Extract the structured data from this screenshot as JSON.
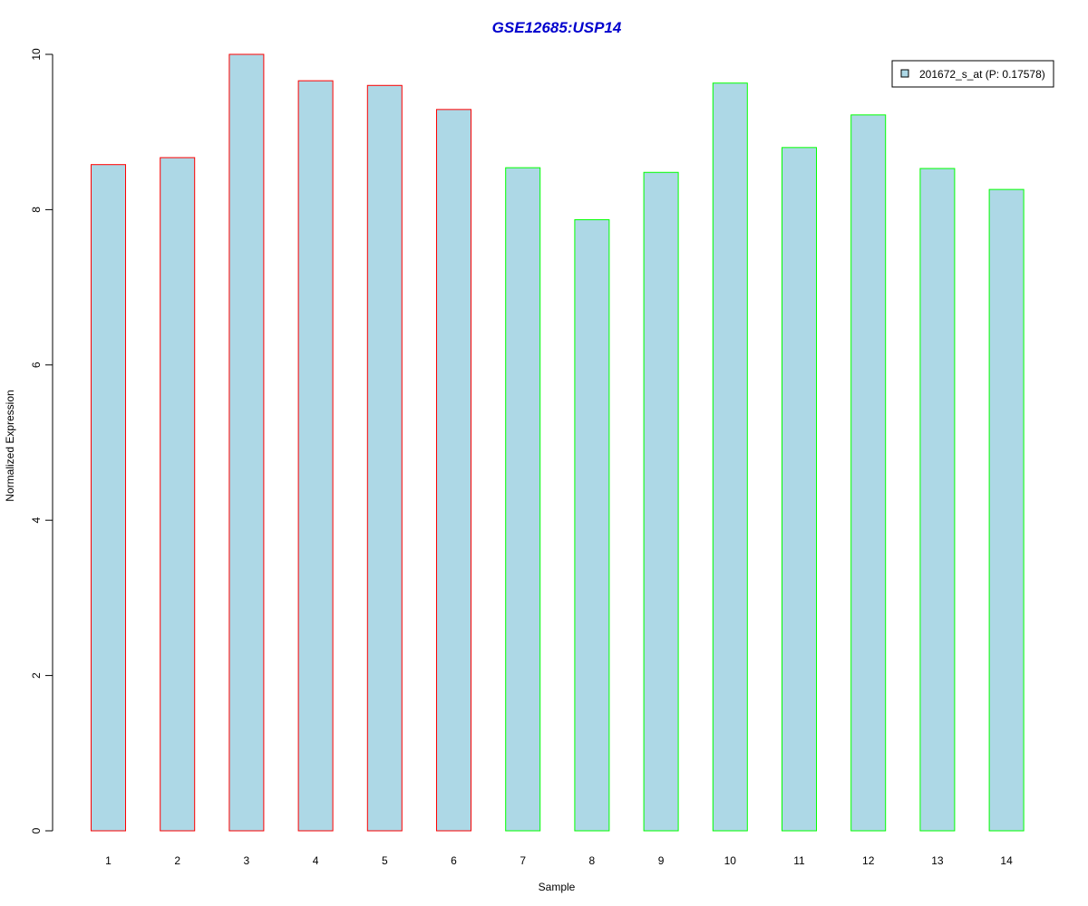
{
  "chart_data": {
    "type": "bar",
    "title": "GSE12685:USP14",
    "xlabel": "Sample",
    "ylabel": "Normalized Expression",
    "ylim": [
      0,
      10
    ],
    "yticks": [
      "0",
      "2",
      "4",
      "6",
      "8",
      "10"
    ],
    "categories": [
      "1",
      "2",
      "3",
      "4",
      "5",
      "6",
      "7",
      "8",
      "9",
      "10",
      "11",
      "12",
      "13",
      "14"
    ],
    "series": [
      {
        "name": "201672_s_at (P: 0.17578)",
        "values": [
          8.58,
          8.67,
          10.0,
          9.66,
          9.6,
          9.29,
          8.54,
          7.87,
          8.48,
          9.63,
          8.8,
          9.22,
          8.53,
          8.26
        ]
      }
    ],
    "bar_fill": "#add8e6",
    "bar_borders": [
      "#ff0000",
      "#ff0000",
      "#ff0000",
      "#ff0000",
      "#ff0000",
      "#ff0000",
      "#00ff00",
      "#00ff00",
      "#00ff00",
      "#00ff00",
      "#00ff00",
      "#00ff00",
      "#00ff00",
      "#00ff00"
    ],
    "title_color": "#0000cd",
    "legend_position": "top-right",
    "grid": false
  }
}
